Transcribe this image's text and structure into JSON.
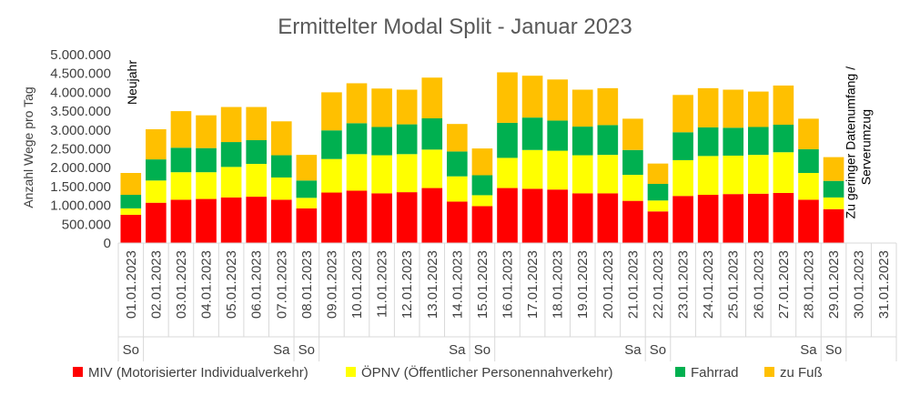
{
  "chart_data": {
    "type": "bar",
    "stacked": true,
    "title": "Ermittelter Modal Split - Januar 2023",
    "ylabel": "Anzahl Wege pro Tag",
    "ylim": [
      0,
      5000000
    ],
    "yticks": [
      "0",
      "500.000",
      "1.000.000",
      "1.500.000",
      "2.000.000",
      "2.500.000",
      "3.000.000",
      "3.500.000",
      "4.000.000",
      "4.500.000",
      "5.000.000"
    ],
    "categories": [
      "01.01.2023",
      "02.01.2023",
      "03.01.2023",
      "04.01.2023",
      "05.01.2023",
      "06.01.2023",
      "07.01.2023",
      "08.01.2023",
      "09.01.2023",
      "10.01.2023",
      "11.01.2023",
      "12.01.2023",
      "13.01.2023",
      "14.01.2023",
      "15.01.2023",
      "16.01.2023",
      "17.01.2023",
      "18.01.2023",
      "19.01.2023",
      "20.01.2023",
      "21.01.2023",
      "22.01.2023",
      "23.01.2023",
      "24.01.2023",
      "25.01.2023",
      "26.01.2023",
      "27.01.2023",
      "28.01.2023",
      "29.01.2023",
      "30.01.2023",
      "31.01.2023"
    ],
    "day_tags": [
      "So",
      "",
      "",
      "",
      "",
      "",
      "Sa",
      "So",
      "",
      "",
      "",
      "",
      "",
      "Sa",
      "So",
      "",
      "",
      "",
      "",
      "",
      "Sa",
      "So",
      "",
      "",
      "",
      "",
      "",
      "Sa",
      "So",
      "",
      ""
    ],
    "series": [
      {
        "name": "MIV (Motorisierter Individualverkehr)",
        "color": "#ff0000",
        "values": [
          750000,
          1070000,
          1150000,
          1170000,
          1210000,
          1230000,
          1150000,
          920000,
          1340000,
          1390000,
          1320000,
          1350000,
          1460000,
          1100000,
          980000,
          1460000,
          1440000,
          1420000,
          1320000,
          1320000,
          1120000,
          840000,
          1250000,
          1280000,
          1300000,
          1310000,
          1330000,
          1150000,
          900000,
          0,
          0
        ]
      },
      {
        "name": "ÖPNV (Öffentlicher Personennahverkehr)",
        "color": "#ffff00",
        "values": [
          170000,
          590000,
          730000,
          710000,
          810000,
          870000,
          590000,
          280000,
          890000,
          970000,
          1010000,
          1010000,
          1020000,
          670000,
          290000,
          800000,
          1030000,
          1030000,
          1010000,
          1020000,
          690000,
          290000,
          950000,
          1030000,
          1020000,
          1030000,
          1080000,
          710000,
          310000,
          0,
          0
        ]
      },
      {
        "name": "Fahrrad",
        "color": "#00b050",
        "values": [
          360000,
          560000,
          650000,
          640000,
          660000,
          630000,
          590000,
          460000,
          760000,
          820000,
          750000,
          790000,
          830000,
          660000,
          530000,
          930000,
          860000,
          800000,
          760000,
          790000,
          660000,
          440000,
          740000,
          760000,
          740000,
          740000,
          730000,
          630000,
          440000,
          0,
          0
        ]
      },
      {
        "name": "zu Fuß",
        "color": "#ffc000",
        "values": [
          580000,
          800000,
          970000,
          870000,
          930000,
          880000,
          900000,
          680000,
          1010000,
          1060000,
          1020000,
          920000,
          1080000,
          730000,
          710000,
          1340000,
          1110000,
          1090000,
          980000,
          980000,
          830000,
          540000,
          990000,
          1040000,
          1010000,
          940000,
          1040000,
          810000,
          630000,
          0,
          0
        ]
      }
    ],
    "annotations": {
      "neujahr": "Neujahr",
      "missing": [
        "Zu geringer Datenumfang /",
        "Serverumzug"
      ]
    },
    "legend_position": "bottom",
    "grid": false
  }
}
